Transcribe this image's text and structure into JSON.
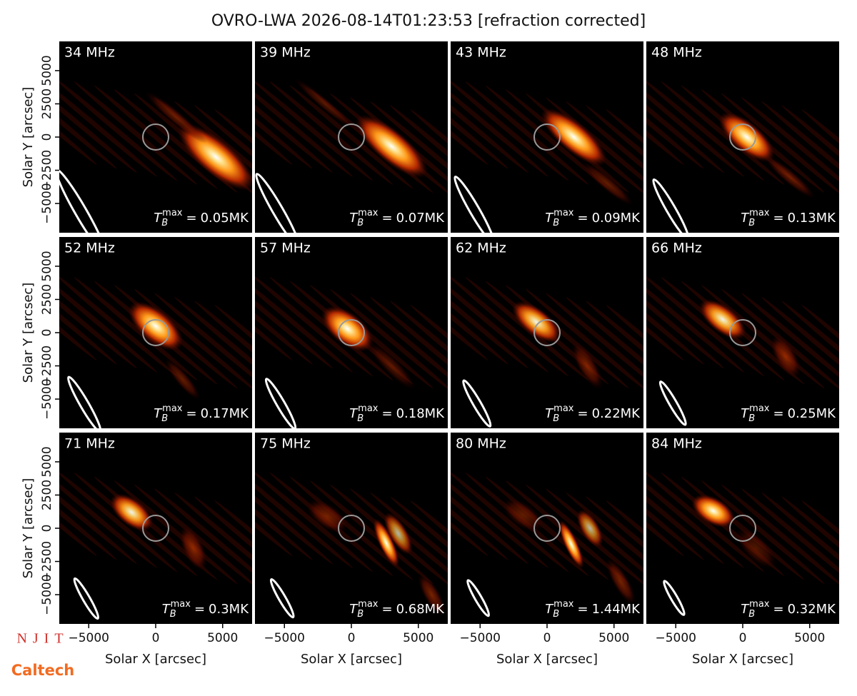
{
  "title": "OVRO-LWA 2026-08-14T01:23:53 [refraction corrected]",
  "tb_symbol": {
    "base": "T",
    "sub": "B",
    "sup": "max",
    "relation": "="
  },
  "logos": [
    "NJIT",
    "Caltech"
  ],
  "chart_data": [
    {
      "type": "image",
      "label": "34 MHz",
      "tb_max": "0.05MK",
      "xlim": [
        -7200,
        7200
      ],
      "ylim": [
        -7200,
        7200
      ],
      "ylabel": "Solar Y [arcsec]",
      "yticks": [
        {
          "value": -5000,
          "label": "−5000"
        },
        {
          "value": -2500,
          "label": "−2500"
        },
        0,
        2500,
        5000
      ]
    },
    {
      "type": "image",
      "label": "39 MHz",
      "tb_max": "0.07MK",
      "xlim": [
        -7200,
        7200
      ],
      "ylim": [
        -7200,
        7200
      ]
    },
    {
      "type": "image",
      "label": "43 MHz",
      "tb_max": "0.09MK",
      "xlim": [
        -7200,
        7200
      ],
      "ylim": [
        -7200,
        7200
      ]
    },
    {
      "type": "image",
      "label": "48 MHz",
      "tb_max": "0.13MK",
      "xlim": [
        -7200,
        7200
      ],
      "ylim": [
        -7200,
        7200
      ]
    },
    {
      "type": "image",
      "label": "52 MHz",
      "tb_max": "0.17MK",
      "xlim": [
        -7200,
        7200
      ],
      "ylim": [
        -7200,
        7200
      ],
      "ylabel": "Solar Y [arcsec]",
      "yticks": [
        {
          "value": -5000,
          "label": "−5000"
        },
        {
          "value": -2500,
          "label": "−2500"
        },
        0,
        2500,
        5000
      ]
    },
    {
      "type": "image",
      "label": "57 MHz",
      "tb_max": "0.18MK",
      "xlim": [
        -7200,
        7200
      ],
      "ylim": [
        -7200,
        7200
      ]
    },
    {
      "type": "image",
      "label": "62 MHz",
      "tb_max": "0.22MK",
      "xlim": [
        -7200,
        7200
      ],
      "ylim": [
        -7200,
        7200
      ]
    },
    {
      "type": "image",
      "label": "66 MHz",
      "tb_max": "0.25MK",
      "xlim": [
        -7200,
        7200
      ],
      "ylim": [
        -7200,
        7200
      ]
    },
    {
      "type": "image",
      "label": "71 MHz",
      "tb_max": "0.3MK",
      "xlim": [
        -7200,
        7200
      ],
      "ylim": [
        -7200,
        7200
      ],
      "ylabel": "Solar Y [arcsec]",
      "yticks": [
        {
          "value": -5000,
          "label": "−5000"
        },
        {
          "value": -2500,
          "label": "−2500"
        },
        0,
        2500,
        5000
      ],
      "xlabel": "Solar X [arcsec]",
      "xticks": [
        {
          "value": -5000,
          "label": "−5000"
        },
        0,
        5000
      ]
    },
    {
      "type": "image",
      "label": "75 MHz",
      "tb_max": "0.68MK",
      "xlim": [
        -7200,
        7200
      ],
      "ylim": [
        -7200,
        7200
      ],
      "xlabel": "Solar X [arcsec]",
      "xticks": [
        {
          "value": -5000,
          "label": "−5000"
        },
        0,
        5000
      ]
    },
    {
      "type": "image",
      "label": "80 MHz",
      "tb_max": "1.44MK",
      "xlim": [
        -7200,
        7200
      ],
      "ylim": [
        -7200,
        7200
      ],
      "xlabel": "Solar X [arcsec]",
      "xticks": [
        {
          "value": -5000,
          "label": "−5000"
        },
        0,
        5000
      ]
    },
    {
      "type": "image",
      "label": "84 MHz",
      "tb_max": "0.32MK",
      "xlim": [
        -7200,
        7200
      ],
      "ylim": [
        -7200,
        7200
      ],
      "xlabel": "Solar X [arcsec]",
      "xticks": [
        {
          "value": -5000,
          "label": "−5000"
        },
        0,
        5000
      ]
    }
  ]
}
